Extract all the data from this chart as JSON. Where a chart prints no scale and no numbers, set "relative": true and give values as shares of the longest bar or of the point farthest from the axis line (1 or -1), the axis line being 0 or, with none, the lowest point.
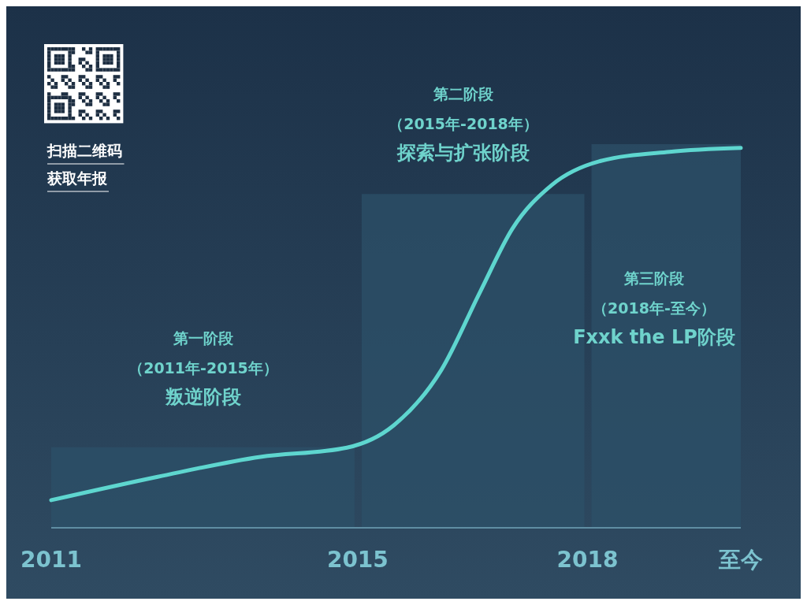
{
  "chart_data": {
    "type": "histogram",
    "relative": true,
    "bins": [
      2011,
      2015,
      2018,
      2020
    ],
    "values": [
      0.21,
      0.87,
      1.0
    ],
    "color": "#2c5068",
    "series": [
      {
        "type": "line",
        "color": "#5ed6cf",
        "x": [
          2011,
          2012.39,
          2013.73,
          2014.86,
          2015.47,
          2016.09,
          2016.6,
          2017.02,
          2017.53,
          2018.15,
          2019.07,
          2020
        ],
        "values": [
          0.072,
          0.133,
          0.185,
          0.209,
          0.267,
          0.411,
          0.616,
          0.78,
          0.893,
          0.955,
          0.98,
          0.99
        ]
      }
    ],
    "xlim": [
      2011,
      2020
    ],
    "xticks": [
      2011,
      2015,
      2018,
      {
        "value": 2020,
        "label": "至今"
      }
    ],
    "marker": "none",
    "line_style": "solid",
    "annotations": [
      "第一阶段",
      "（2011年-2015年）",
      "叛逆阶段",
      "第二阶段",
      "（2015年-2018年）",
      "探索与扩张阶段",
      "第三阶段",
      "（2018年-至今）",
      "Fxxk the LP阶段",
      "扫描二维码",
      "获取年报"
    ]
  }
}
